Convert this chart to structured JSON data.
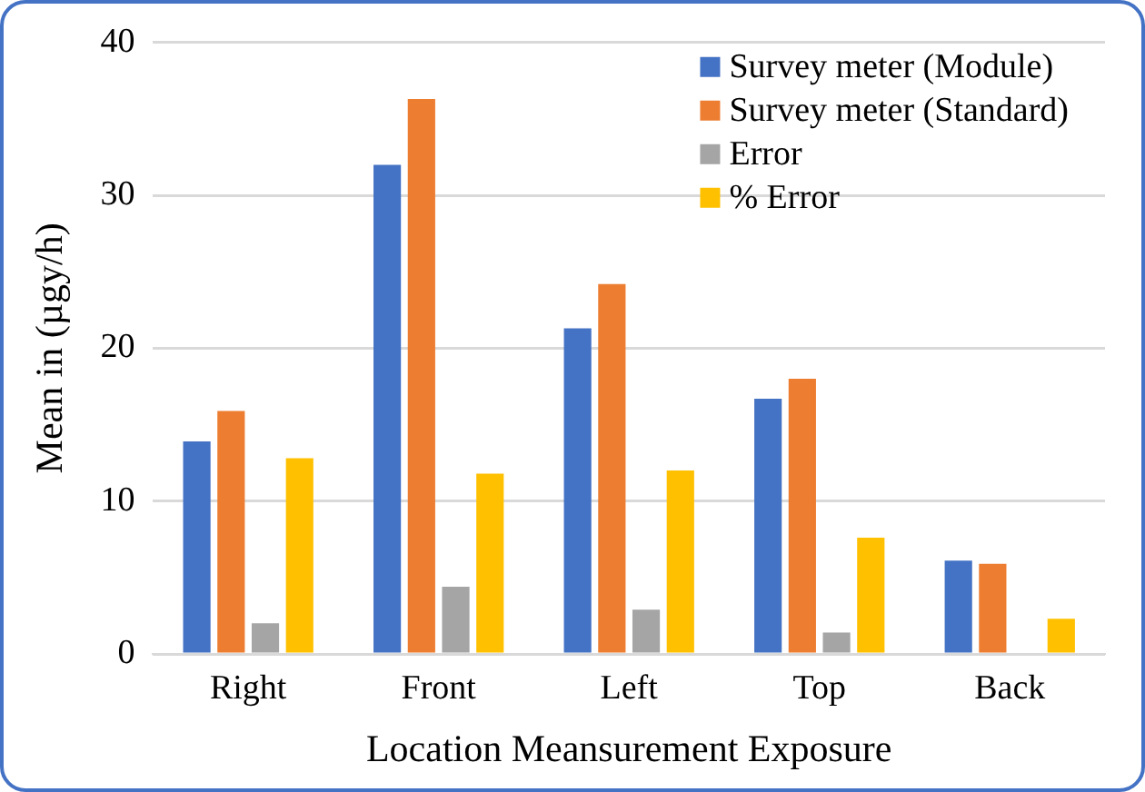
{
  "chart_data": {
    "type": "bar",
    "xlabel": "Location Meansurement Exposure",
    "ylabel": "Mean in (µgy/h)",
    "categories": [
      "Right",
      "Front",
      "Left",
      "Top",
      "Back"
    ],
    "series": [
      {
        "name": "Survey meter (Module)",
        "color": "#4472c4",
        "values": [
          13.9,
          32.0,
          21.3,
          16.7,
          6.1
        ]
      },
      {
        "name": "Survey meter (Standard)",
        "color": "#ed7d31",
        "values": [
          15.9,
          36.3,
          24.2,
          18.0,
          5.9
        ]
      },
      {
        "name": "Error",
        "color": "#a5a5a5",
        "values": [
          2.0,
          4.4,
          2.9,
          1.4,
          null
        ]
      },
      {
        "name": "% Error",
        "color": "#ffc000",
        "values": [
          12.8,
          11.8,
          12.0,
          7.6,
          2.3
        ]
      }
    ],
    "ylim": [
      0,
      40
    ],
    "yticks": [
      0,
      10,
      20,
      30,
      40
    ],
    "grid": "y",
    "legend": "top right"
  }
}
